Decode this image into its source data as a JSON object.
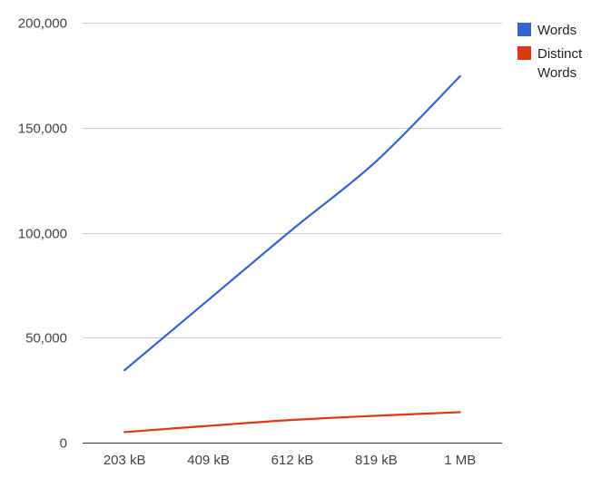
{
  "chart_data": {
    "type": "line",
    "categories": [
      "203 kB",
      "409 kB",
      "612 kB",
      "819 kB",
      "1 MB"
    ],
    "series": [
      {
        "name": "Words",
        "color": "#3366cc",
        "values": [
          34500,
          68000,
          101500,
          134000,
          174500
        ]
      },
      {
        "name": "Distinct Words",
        "name_lines": [
          "Distinct",
          "Words"
        ],
        "color": "#dc3912",
        "values": [
          5000,
          8000,
          10800,
          12800,
          14500
        ]
      }
    ],
    "ylim": [
      0,
      200000
    ],
    "y_ticks": [
      0,
      50000,
      100000,
      150000,
      200000
    ],
    "y_tick_labels": [
      "0",
      "50,000",
      "100,000",
      "150,000",
      "200,000"
    ],
    "grid": true,
    "legend_position": "right",
    "title": "",
    "xlabel": "",
    "ylabel": ""
  }
}
